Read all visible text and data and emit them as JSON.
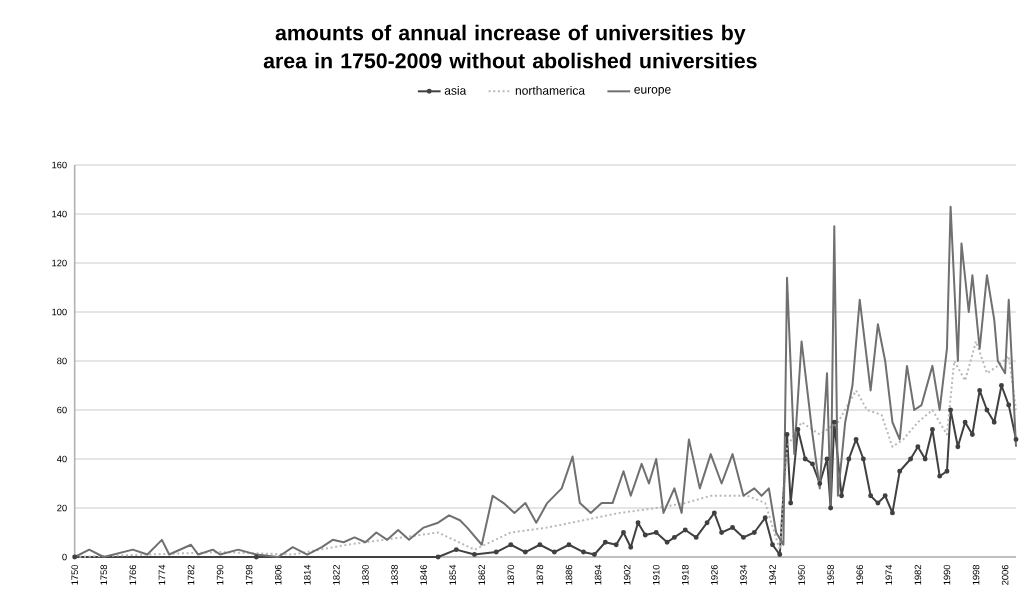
{
  "chart_data": {
    "type": "line",
    "title": "amounts of annual increase of universities by area in 1750-2009 without abolished universities",
    "xlim": [
      1750,
      2009
    ],
    "xticks": [
      1750,
      1758,
      1766,
      1774,
      1782,
      1790,
      1798,
      1806,
      1814,
      1822,
      1830,
      1838,
      1846,
      1854,
      1862,
      1870,
      1878,
      1886,
      1894,
      1902,
      1910,
      1918,
      1926,
      1934,
      1942,
      1950,
      1958,
      1966,
      1974,
      1982,
      1990,
      1998,
      2006
    ],
    "ylim": [
      0,
      160
    ],
    "yticks": [
      0,
      20,
      40,
      60,
      80,
      100,
      120,
      140,
      160
    ],
    "grid": "y",
    "legend": "top",
    "series": [
      {
        "name": "asia",
        "color": "#404040",
        "marker": "circle",
        "line_style": "solid",
        "x": [
          1750,
          1800,
          1850,
          1855,
          1860,
          1866,
          1870,
          1874,
          1878,
          1882,
          1886,
          1890,
          1893,
          1896,
          1899,
          1901,
          1903,
          1905,
          1907,
          1910,
          1913,
          1915,
          1918,
          1921,
          1924,
          1926,
          1928,
          1931,
          1934,
          1937,
          1940,
          1942,
          1944,
          1946,
          1947,
          1949,
          1951,
          1953,
          1955,
          1957,
          1958,
          1959,
          1961,
          1963,
          1965,
          1967,
          1969,
          1971,
          1973,
          1975,
          1977,
          1980,
          1982,
          1984,
          1986,
          1988,
          1990,
          1991,
          1993,
          1995,
          1997,
          1999,
          2001,
          2003,
          2005,
          2007,
          2009
        ],
        "values": [
          0,
          0,
          0,
          3,
          1,
          2,
          5,
          2,
          5,
          2,
          5,
          2,
          1,
          6,
          5,
          10,
          4,
          14,
          9,
          10,
          6,
          8,
          11,
          8,
          14,
          18,
          10,
          12,
          8,
          10,
          16,
          5,
          1,
          50,
          22,
          52,
          40,
          38,
          30,
          40,
          20,
          55,
          25,
          40,
          48,
          40,
          25,
          22,
          25,
          18,
          35,
          40,
          45,
          40,
          52,
          33,
          35,
          60,
          45,
          55,
          50,
          68,
          60,
          55,
          70,
          62,
          48
        ]
      },
      {
        "name": "northamerica",
        "color": "#b8b8b8",
        "marker": "none",
        "line_style": "dotted",
        "x": [
          1750,
          1770,
          1790,
          1810,
          1825,
          1840,
          1850,
          1860,
          1870,
          1880,
          1890,
          1900,
          1910,
          1918,
          1925,
          1935,
          1940,
          1944,
          1946,
          1950,
          1955,
          1960,
          1965,
          1968,
          1972,
          1975,
          1978,
          1982,
          1986,
          1990,
          1992,
          1995,
          1998,
          2001,
          2004,
          2007,
          2009
        ],
        "values": [
          0,
          1,
          2,
          1,
          5,
          8,
          10,
          3,
          10,
          12,
          15,
          18,
          20,
          22,
          25,
          25,
          22,
          3,
          45,
          55,
          50,
          55,
          68,
          60,
          58,
          45,
          48,
          55,
          60,
          50,
          80,
          72,
          88,
          75,
          78,
          82,
          60
        ]
      },
      {
        "name": "europe",
        "color": "#707070",
        "marker": "none",
        "line_style": "solid",
        "x": [
          1750,
          1754,
          1758,
          1766,
          1770,
          1774,
          1776,
          1782,
          1784,
          1788,
          1790,
          1795,
          1800,
          1806,
          1810,
          1814,
          1818,
          1821,
          1824,
          1827,
          1830,
          1833,
          1836,
          1839,
          1842,
          1846,
          1850,
          1853,
          1856,
          1858,
          1862,
          1865,
          1868,
          1871,
          1874,
          1877,
          1880,
          1884,
          1887,
          1889,
          1892,
          1895,
          1898,
          1901,
          1903,
          1906,
          1908,
          1910,
          1912,
          1915,
          1917,
          1919,
          1922,
          1925,
          1928,
          1931,
          1934,
          1937,
          1939,
          1941,
          1943,
          1945,
          1946,
          1948,
          1950,
          1953,
          1955,
          1957,
          1958,
          1959,
          1960,
          1962,
          1964,
          1966,
          1969,
          1971,
          1973,
          1975,
          1977,
          1979,
          1981,
          1983,
          1986,
          1988,
          1990,
          1991,
          1993,
          1994,
          1996,
          1997,
          1999,
          2001,
          2003,
          2004,
          2006,
          2007,
          2009
        ],
        "values": [
          0,
          3,
          0,
          3,
          1,
          7,
          1,
          5,
          1,
          3,
          1,
          3,
          1,
          0,
          4,
          1,
          4,
          7,
          6,
          8,
          6,
          10,
          7,
          11,
          7,
          12,
          14,
          17,
          15,
          12,
          5,
          25,
          22,
          18,
          22,
          14,
          22,
          28,
          41,
          22,
          18,
          22,
          22,
          35,
          25,
          38,
          30,
          40,
          18,
          28,
          18,
          48,
          28,
          42,
          30,
          42,
          25,
          28,
          25,
          28,
          10,
          5,
          114,
          42,
          88,
          50,
          28,
          75,
          20,
          135,
          25,
          55,
          70,
          105,
          68,
          95,
          80,
          55,
          48,
          78,
          60,
          62,
          78,
          60,
          85,
          143,
          80,
          128,
          100,
          115,
          85,
          115,
          97,
          80,
          75,
          105,
          45
        ]
      }
    ]
  }
}
